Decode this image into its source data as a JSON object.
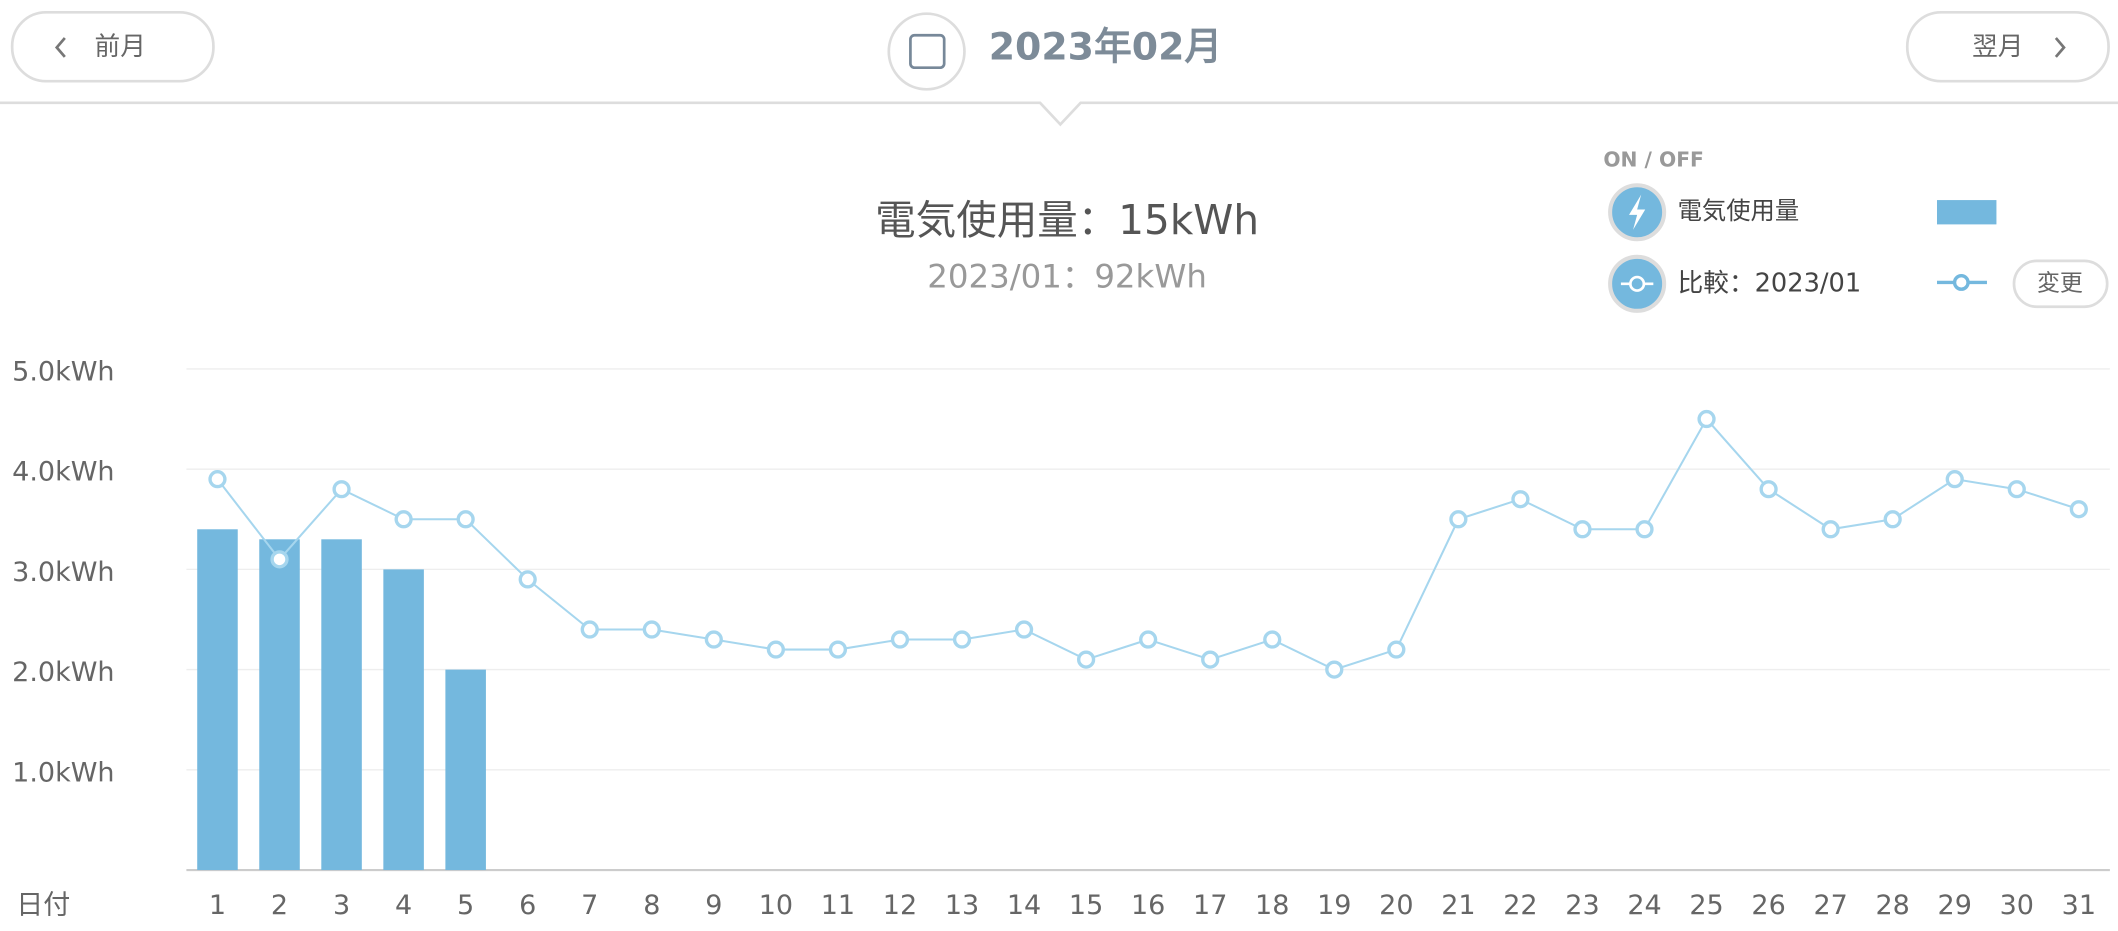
{
  "header": {
    "prev": "前月",
    "month": "2023年02月",
    "next": "翌月"
  },
  "summary": {
    "total": "電気使用量：15kWh",
    "compare": "2023/01：92kWh"
  },
  "legend": {
    "toggle": "ON / OFF",
    "change": "変更"
  },
  "chart_data": {
    "type": "bar",
    "x_label": "日付",
    "categories": [
      "1",
      "2",
      "3",
      "4",
      "5",
      "6",
      "7",
      "8",
      "9",
      "10",
      "11",
      "12",
      "13",
      "14",
      "15",
      "16",
      "17",
      "18",
      "19",
      "20",
      "21",
      "22",
      "23",
      "24",
      "25",
      "26",
      "27",
      "28",
      "29",
      "30",
      "31"
    ],
    "series": [
      {
        "name": "電気使用量",
        "type": "bar",
        "color": "#74b8de",
        "values": [
          3.4,
          3.3,
          3.3,
          3.0,
          2.0,
          null,
          null,
          null,
          null,
          null,
          null,
          null,
          null,
          null,
          null,
          null,
          null,
          null,
          null,
          null,
          null,
          null,
          null,
          null,
          null,
          null,
          null,
          null,
          null,
          null,
          null
        ]
      },
      {
        "name": "比較：2023/01",
        "type": "line",
        "color": "#a6d6ee",
        "values": [
          3.9,
          3.1,
          3.8,
          3.5,
          3.5,
          2.9,
          2.4,
          2.4,
          2.3,
          2.2,
          2.2,
          2.3,
          2.3,
          2.4,
          2.1,
          2.3,
          2.1,
          2.3,
          2.0,
          2.2,
          3.5,
          3.7,
          3.4,
          3.4,
          4.5,
          3.8,
          3.4,
          3.5,
          3.9,
          3.8,
          3.6
        ]
      }
    ],
    "ylim": [
      0,
      5
    ],
    "yticks": [
      {
        "value": 1,
        "label": "1.0kWh"
      },
      {
        "value": 2,
        "label": "2.0kWh"
      },
      {
        "value": 3,
        "label": "3.0kWh"
      },
      {
        "value": 4,
        "label": "4.0kWh"
      },
      {
        "value": 5,
        "label": "5.0kWh"
      }
    ],
    "grid": true
  }
}
